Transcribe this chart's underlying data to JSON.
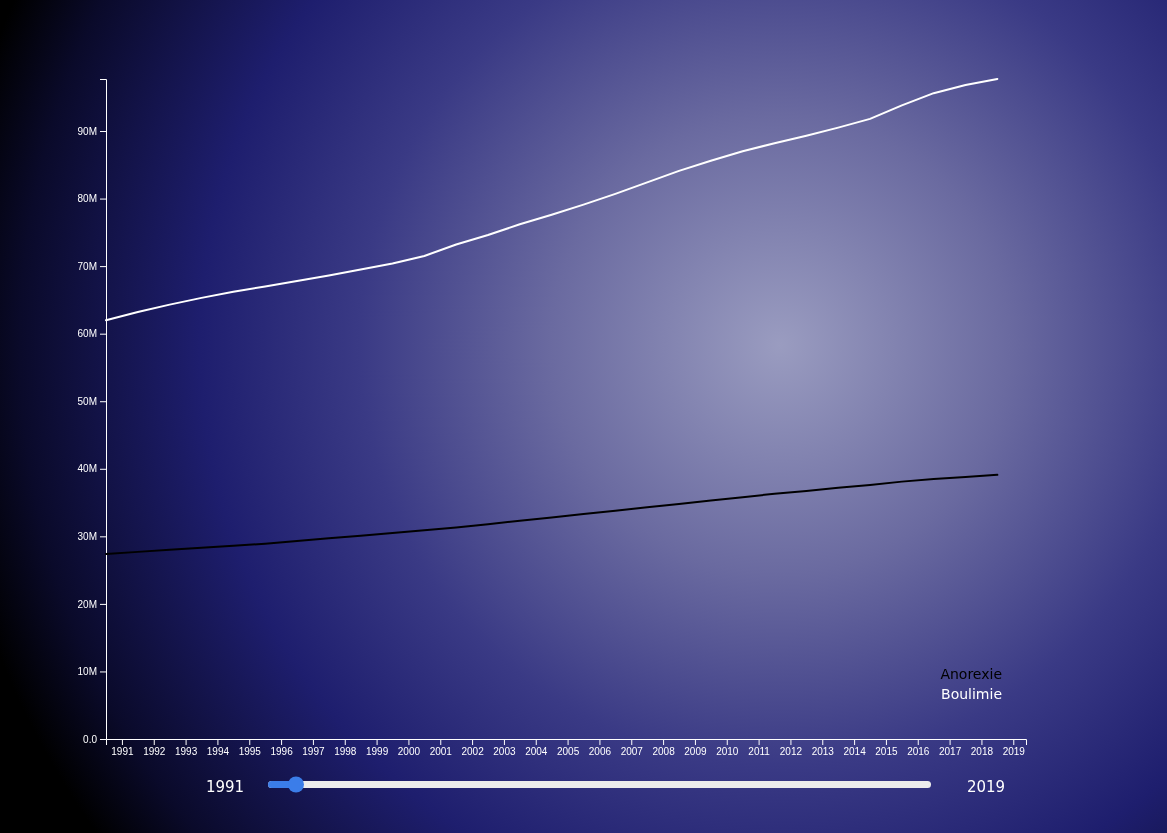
{
  "chart_data": {
    "type": "line",
    "x": [
      1990.5,
      1991.5,
      1992.5,
      1993.5,
      1994.5,
      1995.5,
      1996.5,
      1997.5,
      1998.5,
      1999.5,
      2000.5,
      2001.5,
      2002.5,
      2003.5,
      2004.5,
      2005.5,
      2006.5,
      2007.5,
      2008.5,
      2009.5,
      2010.5,
      2011.5,
      2012.5,
      2013.5,
      2014.5,
      2015.5,
      2016.5,
      2017.5,
      2018.5
    ],
    "series": [
      {
        "name": "Anorexie",
        "color": "#000000",
        "values": [
          27.4,
          27.7,
          28.0,
          28.3,
          28.6,
          28.9,
          29.3,
          29.7,
          30.1,
          30.5,
          30.9,
          31.3,
          31.8,
          32.3,
          32.8,
          33.3,
          33.8,
          34.3,
          34.8,
          35.3,
          35.8,
          36.3,
          36.7,
          37.2,
          37.6,
          38.1,
          38.5,
          38.8,
          39.1
        ]
      },
      {
        "name": "Boulimie",
        "color": "#ffffff",
        "values": [
          62.0,
          63.2,
          64.3,
          65.3,
          66.2,
          67.0,
          67.8,
          68.6,
          69.5,
          70.4,
          71.5,
          73.2,
          74.6,
          76.2,
          77.6,
          79.1,
          80.7,
          82.4,
          84.1,
          85.6,
          87.0,
          88.2,
          89.3,
          90.5,
          91.8,
          93.8,
          95.6,
          96.8,
          97.7
        ]
      }
    ],
    "xlim": [
      1990.5,
      2019.4
    ],
    "xticks": [
      1991,
      1992,
      1993,
      1994,
      1995,
      1996,
      1997,
      1998,
      1999,
      2000,
      2001,
      2002,
      2003,
      2004,
      2005,
      2006,
      2007,
      2008,
      2009,
      2010,
      2011,
      2012,
      2013,
      2014,
      2015,
      2016,
      2017,
      2018,
      2019
    ],
    "ylim": [
      0,
      97.7
    ],
    "yticks": [
      {
        "value": 0,
        "label": "0.0"
      },
      {
        "value": 10,
        "label": "10M"
      },
      {
        "value": 20,
        "label": "20M"
      },
      {
        "value": 30,
        "label": "30M"
      },
      {
        "value": 40,
        "label": "40M"
      },
      {
        "value": 50,
        "label": "50M"
      },
      {
        "value": 60,
        "label": "60M"
      },
      {
        "value": 70,
        "label": "70M"
      },
      {
        "value": 80,
        "label": "80M"
      },
      {
        "value": 90,
        "label": "90M"
      }
    ],
    "legend": "bottom right",
    "grid": false,
    "marker": "none",
    "line_style": "solid",
    "annotations": [
      "1991",
      "2019"
    ]
  }
}
